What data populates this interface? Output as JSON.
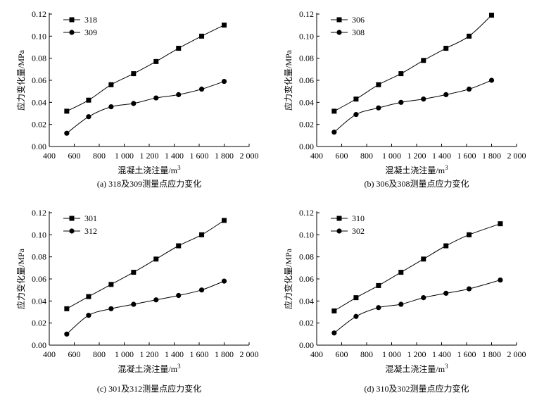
{
  "chart_data": [
    {
      "type": "line",
      "caption": "(a)  318及309测量点应力变化",
      "xlabel": "混凝土浇注量/m",
      "xlabel_sup": "3",
      "ylabel": "应力变化量/MPa",
      "xlim": [
        400,
        2000
      ],
      "ylim": [
        0,
        0.12
      ],
      "xticks": [
        "400",
        "600",
        "800",
        "1 000",
        "1 200",
        "1 400",
        "1 600",
        "1 800",
        "2 000"
      ],
      "yticks": [
        "0.00",
        "0.02",
        "0.04",
        "0.06",
        "0.08",
        "0.10",
        "0.12"
      ],
      "legend_position": "top-left",
      "series": [
        {
          "name": "318",
          "marker": "square",
          "x": [
            540,
            715,
            895,
            1075,
            1255,
            1435,
            1620,
            1800
          ],
          "y": [
            0.032,
            0.042,
            0.056,
            0.066,
            0.077,
            0.089,
            0.1,
            0.11
          ]
        },
        {
          "name": "309",
          "marker": "circle",
          "x": [
            540,
            715,
            895,
            1075,
            1255,
            1435,
            1620,
            1800
          ],
          "y": [
            0.012,
            0.027,
            0.036,
            0.039,
            0.044,
            0.047,
            0.052,
            0.059
          ]
        }
      ]
    },
    {
      "type": "line",
      "caption": "(b)  306及308测量点应力变化",
      "xlabel": "混凝土浇注量/m",
      "xlabel_sup": "3",
      "ylabel": "应力变化量/MPa",
      "xlim": [
        400,
        2000
      ],
      "ylim": [
        0,
        0.12
      ],
      "xticks": [
        "400",
        "600",
        "800",
        "1 000",
        "1 200",
        "1 400",
        "1 600",
        "1 800",
        "2 000"
      ],
      "yticks": [
        "0.00",
        "0.02",
        "0.04",
        "0.06",
        "0.08",
        "0.10",
        "0.12"
      ],
      "legend_position": "top-left",
      "series": [
        {
          "name": "306",
          "marker": "square",
          "x": [
            540,
            715,
            895,
            1075,
            1255,
            1435,
            1620,
            1800
          ],
          "y": [
            0.032,
            0.043,
            0.056,
            0.066,
            0.078,
            0.089,
            0.1,
            0.119
          ]
        },
        {
          "name": "308",
          "marker": "circle",
          "x": [
            540,
            715,
            895,
            1075,
            1255,
            1435,
            1620,
            1800
          ],
          "y": [
            0.013,
            0.029,
            0.035,
            0.04,
            0.043,
            0.047,
            0.052,
            0.06
          ]
        }
      ]
    },
    {
      "type": "line",
      "caption": "(c)  301及312测量点应力变化",
      "xlabel": "混凝土浇注量/m",
      "xlabel_sup": "3",
      "ylabel": "应力变化量/MPa",
      "xlim": [
        400,
        2000
      ],
      "ylim": [
        0,
        0.12
      ],
      "xticks": [
        "400",
        "600",
        "800",
        "1 000",
        "1 200",
        "1 400",
        "1 600",
        "1 800",
        "2 000"
      ],
      "yticks": [
        "0.00",
        "0.02",
        "0.04",
        "0.06",
        "0.08",
        "0.10",
        "0.12"
      ],
      "legend_position": "top-left",
      "series": [
        {
          "name": "301",
          "marker": "square",
          "x": [
            540,
            715,
            895,
            1075,
            1255,
            1435,
            1620,
            1800
          ],
          "y": [
            0.033,
            0.044,
            0.055,
            0.066,
            0.078,
            0.09,
            0.1,
            0.113
          ]
        },
        {
          "name": "312",
          "marker": "circle",
          "x": [
            540,
            715,
            895,
            1075,
            1255,
            1435,
            1620,
            1800
          ],
          "y": [
            0.01,
            0.027,
            0.033,
            0.037,
            0.041,
            0.045,
            0.05,
            0.058
          ]
        }
      ]
    },
    {
      "type": "line",
      "caption": "(d)  310及302测量点应力变化",
      "xlabel": "混凝土浇注量/m",
      "xlabel_sup": "3",
      "ylabel": "应力变化量/MPa",
      "xlim": [
        400,
        2000
      ],
      "ylim": [
        0,
        0.12
      ],
      "xticks": [
        "400",
        "600",
        "800",
        "1 000",
        "1 200",
        "1 400",
        "1 600",
        "1 800",
        "2 000"
      ],
      "yticks": [
        "0.00",
        "0.02",
        "0.04",
        "0.06",
        "0.08",
        "0.10",
        "0.12"
      ],
      "legend_position": "top-left",
      "series": [
        {
          "name": "310",
          "marker": "square",
          "x": [
            540,
            715,
            895,
            1075,
            1255,
            1435,
            1620,
            1870
          ],
          "y": [
            0.031,
            0.043,
            0.054,
            0.066,
            0.078,
            0.09,
            0.1,
            0.11
          ]
        },
        {
          "name": "302",
          "marker": "circle",
          "x": [
            540,
            715,
            895,
            1075,
            1255,
            1435,
            1620,
            1870
          ],
          "y": [
            0.011,
            0.026,
            0.034,
            0.037,
            0.043,
            0.047,
            0.051,
            0.059
          ]
        }
      ]
    }
  ]
}
